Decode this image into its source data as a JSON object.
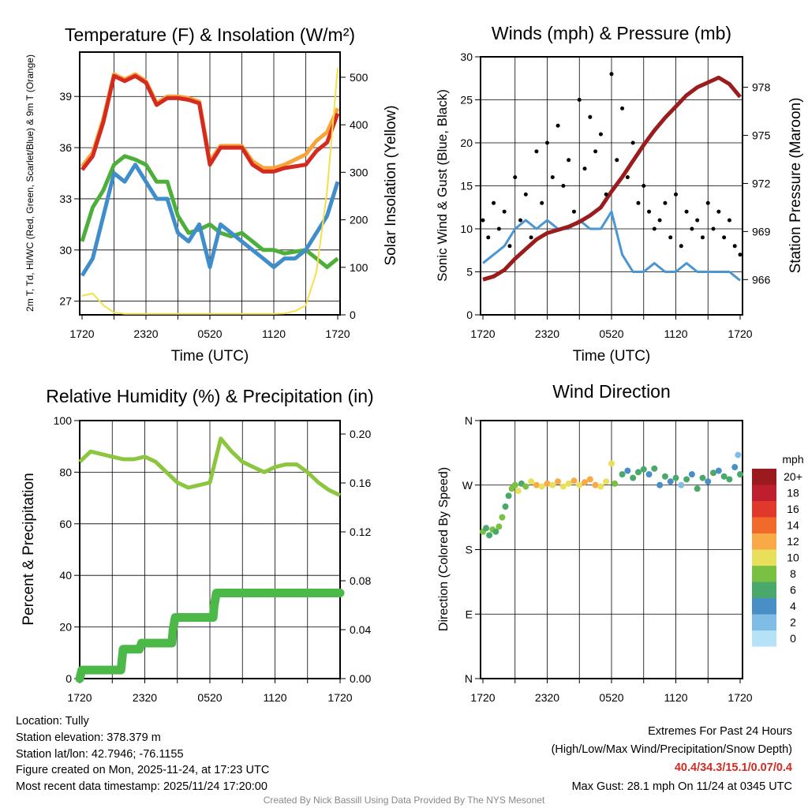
{
  "chart_data": [
    {
      "type": "line",
      "title": "Temperature (F) & Insolation (W/m²)",
      "xlabel": "Time (UTC)",
      "ylabel": "2m T, Td, HI/WC (Red, Green, Scarlet/Blue) & 9m T (Orange)",
      "y2label": "Solar Insolation (Yellow)",
      "xticks": [
        "1720",
        "2320",
        "0520",
        "1120",
        "1720"
      ],
      "yticks": [
        27,
        30,
        33,
        36,
        39
      ],
      "y2ticks": [
        0,
        100,
        200,
        300,
        400,
        500
      ],
      "ylim": [
        26.2,
        41.6
      ],
      "y2lim": [
        0,
        553
      ],
      "xlim_hours": [
        0,
        24
      ],
      "series": [
        {
          "name": "9m T",
          "color": "#f7a43a",
          "axis": "left",
          "values": [
            34.9,
            35.7,
            37.7,
            40.3,
            40.0,
            40.3,
            39.9,
            38.6,
            39.0,
            39.0,
            38.9,
            38.7,
            35.2,
            36.1,
            36.1,
            36.1,
            35.2,
            34.8,
            34.8,
            35.0,
            35.3,
            35.6,
            36.4,
            36.9,
            38.3
          ]
        },
        {
          "name": "2m T",
          "color": "#d42a1f",
          "axis": "left",
          "values": [
            34.7,
            35.5,
            37.5,
            40.2,
            39.9,
            40.2,
            39.8,
            38.5,
            38.9,
            38.9,
            38.8,
            38.6,
            35.0,
            36.0,
            36.0,
            36.0,
            35.0,
            34.6,
            34.6,
            34.8,
            34.9,
            35.0,
            35.8,
            36.3,
            38.0
          ]
        },
        {
          "name": "Td",
          "color": "#4caf3a",
          "axis": "left",
          "values": [
            30.5,
            32.5,
            33.5,
            35.0,
            35.5,
            35.3,
            35.0,
            34.0,
            34.0,
            32.0,
            31.0,
            31.2,
            31.5,
            31.0,
            30.8,
            31.0,
            30.5,
            30.0,
            30.0,
            29.8,
            29.9,
            30.0,
            29.5,
            29.0,
            29.5
          ]
        },
        {
          "name": "WC",
          "color": "#3f8dcb",
          "axis": "left",
          "values": [
            28.5,
            29.5,
            32.0,
            34.5,
            34.0,
            35.0,
            34.0,
            33.0,
            33.0,
            31.0,
            30.5,
            31.5,
            29.0,
            31.5,
            31.0,
            30.5,
            30.0,
            29.5,
            29.0,
            29.5,
            29.5,
            30.0,
            31.0,
            32.0,
            34.0
          ]
        },
        {
          "name": "Solar",
          "color": "#f5e04a",
          "axis": "right",
          "values": [
            40,
            45,
            20,
            5,
            2,
            2,
            2,
            2,
            2,
            2,
            2,
            2,
            2,
            2,
            2,
            2,
            2,
            2,
            2,
            3,
            8,
            20,
            90,
            260,
            520
          ]
        }
      ]
    },
    {
      "type": "line",
      "title": "Winds (mph) & Pressure (mb)",
      "xlabel": "Time (UTC)",
      "ylabel": "Sonic Wind & Gust (Blue, Black)",
      "y2label": "Station Pressure (Maroon)",
      "xticks": [
        "1720",
        "2320",
        "0520",
        "1120",
        "1720"
      ],
      "yticks": [
        0,
        5,
        10,
        15,
        20,
        25,
        30
      ],
      "y2ticks": [
        966,
        969,
        972,
        975,
        978
      ],
      "ylim": [
        0,
        30
      ],
      "y2lim": [
        963.8,
        979.9
      ],
      "series": [
        {
          "name": "Sonic Wind",
          "color": "#4a96d2",
          "axis": "left",
          "values": [
            6,
            7,
            8,
            10,
            11,
            10,
            11,
            10,
            10,
            11,
            10,
            10,
            12,
            7,
            5,
            5,
            6,
            5,
            5,
            6,
            5,
            5,
            5,
            5,
            4
          ]
        },
        {
          "name": "Pressure",
          "color": "#9b1c1c",
          "axis": "right",
          "values": [
            966.0,
            966.2,
            966.6,
            967.3,
            967.9,
            968.5,
            968.9,
            969.1,
            969.3,
            969.6,
            970.0,
            970.5,
            971.5,
            972.4,
            973.4,
            974.4,
            975.3,
            976.1,
            976.8,
            977.5,
            978.0,
            978.3,
            978.6,
            978.2,
            977.4
          ]
        },
        {
          "name": "Gust",
          "color": "#000000",
          "axis": "left",
          "type": "scatter",
          "values": [
            11,
            9,
            13,
            10,
            12,
            8,
            16,
            11,
            14,
            9,
            19,
            13,
            20,
            16,
            22,
            15,
            18,
            12,
            25,
            17,
            23,
            19,
            21,
            14,
            28,
            18,
            24,
            16,
            20,
            13,
            15,
            12,
            10,
            11,
            13,
            9,
            14,
            8,
            12,
            10,
            11,
            9,
            13,
            10,
            12,
            9,
            11,
            8,
            7
          ]
        }
      ]
    },
    {
      "type": "line",
      "title": "Relative Humidity (%) & Precipitation (in)",
      "ylabel": "Percent & Precipitation",
      "xticks": [
        "1720",
        "2320",
        "0520",
        "1120",
        "1720"
      ],
      "yticks": [
        0,
        20,
        40,
        60,
        80,
        100
      ],
      "y2ticks": [
        "0.00",
        "0.04",
        "0.08",
        "0.12",
        "0.16",
        "0.20"
      ],
      "ylim": [
        0,
        100
      ],
      "y2lim": [
        0,
        0.211
      ],
      "series": [
        {
          "name": "RH",
          "color": "#8cc63f",
          "axis": "left",
          "values": [
            84,
            88,
            87,
            86,
            85,
            85,
            86,
            84,
            80,
            76,
            74,
            75,
            76,
            93,
            88,
            84,
            82,
            80,
            82,
            83,
            83,
            80,
            76,
            73,
            71
          ]
        },
        {
          "name": "Precipitation",
          "color": "#4cb848",
          "axis": "right",
          "points": [
            [
              0,
              0
            ],
            [
              0.2,
              0.007
            ],
            [
              3.8,
              0.007
            ],
            [
              4,
              0.024
            ],
            [
              5.5,
              0.024
            ],
            [
              5.7,
              0.029
            ],
            [
              8.5,
              0.029
            ],
            [
              8.6,
              0.04
            ],
            [
              8.8,
              0.05
            ],
            [
              12.3,
              0.05
            ],
            [
              12.4,
              0.06
            ],
            [
              12.6,
              0.07
            ],
            [
              24,
              0.07
            ]
          ]
        }
      ]
    },
    {
      "type": "scatter",
      "title": "Wind Direction",
      "ylabel": "Direction (Colored By Speed)",
      "xticks": [
        "1720",
        "2320",
        "0520",
        "1120",
        "1720"
      ],
      "yticks": [
        "N",
        "E",
        "S",
        "W",
        "N"
      ],
      "ylim": [
        0,
        360
      ],
      "points": [
        [
          0,
          205,
          8
        ],
        [
          0.3,
          210,
          7
        ],
        [
          0.6,
          200,
          6
        ],
        [
          0.9,
          208,
          8
        ],
        [
          1.2,
          205,
          7
        ],
        [
          1.5,
          212,
          9
        ],
        [
          1.8,
          225,
          8
        ],
        [
          2.1,
          240,
          7
        ],
        [
          2.4,
          255,
          6
        ],
        [
          2.7,
          265,
          8
        ],
        [
          3,
          270,
          9
        ],
        [
          3.3,
          262,
          10
        ],
        [
          3.6,
          272,
          7
        ],
        [
          4,
          268,
          8
        ],
        [
          4.5,
          275,
          11
        ],
        [
          5,
          270,
          12
        ],
        [
          5.5,
          268,
          10
        ],
        [
          6,
          272,
          13
        ],
        [
          6.5,
          270,
          11
        ],
        [
          7,
          275,
          12
        ],
        [
          7.5,
          268,
          10
        ],
        [
          8,
          272,
          11
        ],
        [
          8.5,
          276,
          12
        ],
        [
          9,
          270,
          11
        ],
        [
          9.5,
          274,
          12
        ],
        [
          10,
          278,
          13
        ],
        [
          10.5,
          270,
          12
        ],
        [
          11,
          268,
          10
        ],
        [
          11.5,
          275,
          11
        ],
        [
          12,
          300,
          10
        ],
        [
          12.3,
          272,
          9
        ],
        [
          13,
          285,
          6
        ],
        [
          13.5,
          290,
          5
        ],
        [
          14,
          280,
          6
        ],
        [
          14.5,
          288,
          7
        ],
        [
          15,
          292,
          6
        ],
        [
          15.5,
          285,
          5
        ],
        [
          16,
          293,
          7
        ],
        [
          16.5,
          270,
          4
        ],
        [
          17,
          282,
          6
        ],
        [
          17.5,
          275,
          5
        ],
        [
          18,
          280,
          6
        ],
        [
          18.5,
          270,
          2
        ],
        [
          19,
          278,
          6
        ],
        [
          19.5,
          285,
          5
        ],
        [
          20,
          265,
          7
        ],
        [
          20.5,
          280,
          6
        ],
        [
          21,
          275,
          4
        ],
        [
          21.5,
          287,
          6
        ],
        [
          22,
          290,
          5
        ],
        [
          22.5,
          282,
          7
        ],
        [
          23,
          278,
          6
        ],
        [
          23.5,
          295,
          4
        ],
        [
          23.8,
          312,
          3
        ],
        [
          24,
          285,
          6
        ]
      ],
      "colorbar": {
        "title": "mph",
        "labels": [
          "20+",
          "18",
          "16",
          "14",
          "12",
          "10",
          "8",
          "6",
          "4",
          "2",
          "0"
        ],
        "colors": [
          "#9a1a1e",
          "#be1e2d",
          "#e0392b",
          "#f26a2a",
          "#f9a945",
          "#e8e05a",
          "#7ac143",
          "#4aa86b",
          "#4a8ec6",
          "#7fbde6",
          "#b5e2f7"
        ]
      }
    }
  ],
  "footer": {
    "location": "Location: Tully",
    "elevation": "Station elevation: 378.379 m",
    "latlon": "Station lat/lon: 42.7946; -76.1155",
    "created": "Figure created on Mon, 2025-11-24, at 17:23 UTC",
    "recent": "Most recent data timestamp: 2025/11/24 17:20:00",
    "extremes_title": "Extremes For Past 24 Hours",
    "extremes_sub": "(High/Low/Max Wind/Precipitation/Snow Depth)",
    "extremes_values": "40.4/34.3/15.1/0.07/0.4",
    "max_gust": "Max Gust: 28.1 mph On 11/24 at 0345 UTC",
    "credit": "Created By Nick Bassill Using Data Provided By The NYS Mesonet"
  }
}
